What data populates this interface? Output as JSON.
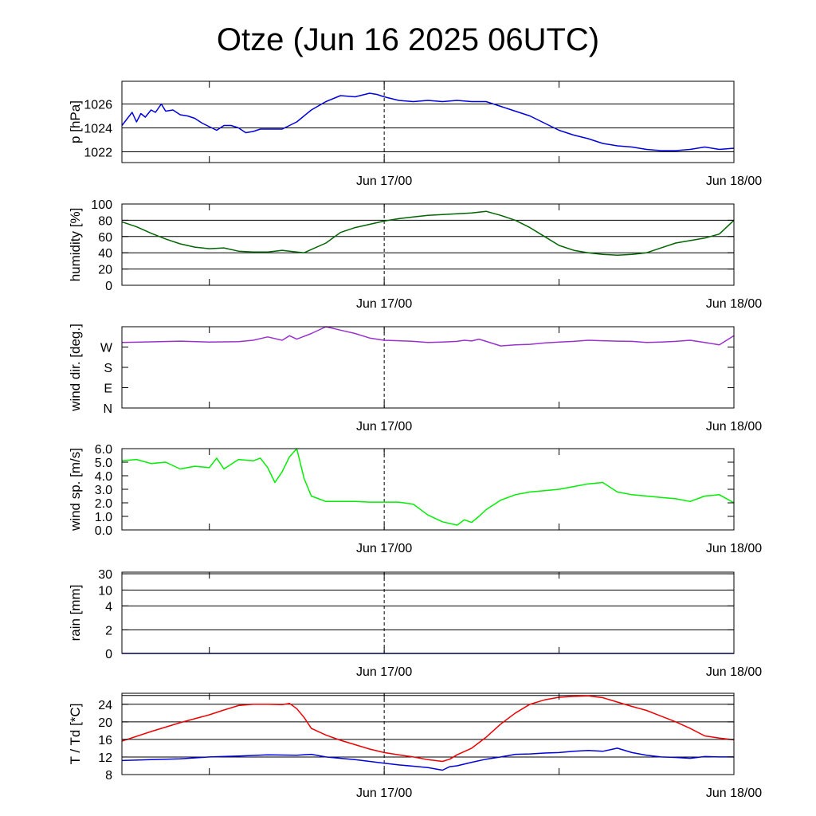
{
  "title": "Otze (Jun 16 2025 06UTC)",
  "x_axis": {
    "start": "Jun 16 06UTC",
    "end": "Jun 18 00UTC",
    "ticks": [
      "Jun 17/00",
      "Jun 18/00"
    ],
    "minor_ticks": [
      "Jun 16/12",
      "Jun 17/12"
    ],
    "marker": "Jun 17/00"
  },
  "chart_data": [
    {
      "type": "line",
      "ylabel": "p [hPa]",
      "ylim": [
        1021.1,
        1027.9
      ],
      "yticks": [
        1022,
        1024,
        1026
      ],
      "ytick_labels": [
        "1022",
        "1024",
        "1026"
      ],
      "grid_lines": [
        1022,
        1024,
        1026
      ],
      "series": [
        {
          "color": "#0000dd",
          "x": [
            0,
            0.7,
            1,
            1.3,
            1.6,
            2,
            2.3,
            2.7,
            3,
            3.5,
            4,
            4.5,
            5,
            5.5,
            6,
            6.5,
            7,
            7.5,
            8,
            8.5,
            9,
            9.5,
            10,
            11,
            12,
            13,
            14,
            15,
            16,
            17,
            17.5,
            18,
            19,
            20,
            21,
            22,
            23,
            24,
            25,
            26,
            27,
            28,
            29,
            30,
            31,
            32,
            33,
            34,
            35,
            36,
            37,
            38,
            39,
            40,
            41,
            42
          ],
          "y": [
            1024.2,
            1025.3,
            1024.5,
            1025.2,
            1024.9,
            1025.5,
            1025.3,
            1026.0,
            1025.4,
            1025.5,
            1025.1,
            1025.0,
            1024.8,
            1024.4,
            1024.1,
            1023.8,
            1024.2,
            1024.2,
            1024.0,
            1023.6,
            1023.7,
            1023.9,
            1023.9,
            1023.9,
            1024.5,
            1025.5,
            1026.2,
            1026.7,
            1026.6,
            1026.9,
            1026.8,
            1026.6,
            1026.3,
            1026.2,
            1026.3,
            1026.2,
            1026.3,
            1026.2,
            1026.2,
            1025.8,
            1025.4,
            1025.0,
            1024.4,
            1023.8,
            1023.4,
            1023.1,
            1022.7,
            1022.5,
            1022.4,
            1022.2,
            1022.1,
            1022.1,
            1022.2,
            1022.4,
            1022.2,
            1022.3
          ]
        }
      ]
    },
    {
      "type": "line",
      "ylabel": "humidity [%]",
      "ylim": [
        0,
        100
      ],
      "yticks": [
        0,
        20,
        40,
        60,
        80,
        100
      ],
      "ytick_labels": [
        "0",
        "20",
        "40",
        "60",
        "80",
        "100"
      ],
      "grid_lines": [
        20,
        40,
        60,
        80
      ],
      "series": [
        {
          "color": "#006400",
          "x": [
            0,
            1,
            2,
            3,
            4,
            5,
            6,
            7,
            8,
            9,
            10,
            10.5,
            11,
            11.5,
            12,
            12.5,
            13,
            14,
            15,
            16,
            17,
            18,
            19,
            20,
            21,
            22,
            23,
            24,
            25,
            26,
            27,
            28,
            29,
            30,
            31,
            32,
            33,
            34,
            35,
            36,
            37,
            38,
            39,
            40,
            41,
            42
          ],
          "y": [
            78,
            72,
            64,
            57,
            51,
            47,
            45,
            46,
            42,
            41,
            41,
            42,
            43,
            42,
            41,
            40,
            44,
            52,
            65,
            71,
            75,
            79,
            82,
            84,
            86,
            87,
            88,
            89,
            91,
            86,
            80,
            71,
            60,
            49,
            43,
            40,
            38,
            37,
            38,
            40,
            46,
            52,
            55,
            58,
            63,
            80
          ]
        }
      ]
    },
    {
      "type": "line",
      "ylabel": "wind dir. [deg.]",
      "ylim": [
        0,
        360
      ],
      "yticks": [
        0,
        90,
        180,
        270
      ],
      "ytick_labels": [
        "N",
        "E",
        "S",
        "W"
      ],
      "grid_lines": [],
      "series": [
        {
          "color": "#9932cc",
          "x": [
            0,
            2,
            4,
            6,
            8,
            9,
            10,
            11,
            11.5,
            12,
            13,
            14,
            15,
            16,
            17,
            18,
            19,
            20,
            21,
            22,
            23,
            23.5,
            24,
            24.5,
            25,
            26,
            27,
            28,
            29,
            30,
            31,
            32,
            33,
            34,
            35,
            36,
            37,
            38,
            39,
            40,
            41,
            42
          ],
          "y": [
            290,
            293,
            296,
            292,
            294,
            300,
            315,
            300,
            320,
            305,
            330,
            360,
            345,
            330,
            310,
            300,
            298,
            295,
            290,
            292,
            295,
            300,
            297,
            305,
            295,
            275,
            280,
            282,
            288,
            292,
            295,
            300,
            298,
            296,
            295,
            290,
            292,
            295,
            300,
            290,
            280,
            320
          ]
        }
      ]
    },
    {
      "type": "line",
      "ylabel": "wind sp. [m/s]",
      "ylim": [
        0,
        6
      ],
      "yticks": [
        0,
        1,
        2,
        3,
        4,
        5,
        6
      ],
      "ytick_labels": [
        "0.0",
        "1.0",
        "2.0",
        "3.0",
        "4.0",
        "5.0",
        "6.0"
      ],
      "grid_lines": [],
      "series": [
        {
          "color": "#00ee00",
          "x": [
            0,
            1,
            2,
            3,
            4,
            5,
            6,
            6.5,
            7,
            8,
            9,
            9.5,
            10,
            10.5,
            11,
            11.5,
            12,
            12.5,
            13,
            14,
            15,
            16,
            17,
            18,
            19,
            20,
            21,
            22,
            23,
            23.5,
            24,
            24.5,
            25,
            26,
            27,
            28,
            29,
            30,
            31,
            32,
            33,
            34,
            35,
            36,
            37,
            38,
            39,
            40,
            41,
            42
          ],
          "y": [
            5.1,
            5.2,
            4.9,
            5.0,
            4.5,
            4.7,
            4.6,
            5.3,
            4.5,
            5.2,
            5.1,
            5.3,
            4.6,
            3.5,
            4.3,
            5.4,
            6.0,
            3.8,
            2.5,
            2.1,
            2.1,
            2.1,
            2.05,
            2.05,
            2.05,
            1.9,
            1.1,
            0.6,
            0.35,
            0.75,
            0.55,
            1.0,
            1.5,
            2.2,
            2.6,
            2.8,
            2.9,
            3.0,
            3.2,
            3.4,
            3.5,
            2.8,
            2.6,
            2.5,
            2.4,
            2.3,
            2.1,
            2.5,
            2.6,
            2.0
          ]
        }
      ]
    },
    {
      "type": "line",
      "ylabel": "rain [mm]",
      "yticks": [
        "0",
        "2",
        "4",
        "10",
        "30"
      ],
      "ytick_labels": [
        "0",
        "2",
        "4",
        "10",
        "30"
      ],
      "grid_lines": [
        "2",
        "4",
        "10",
        "30"
      ],
      "series": [
        {
          "color": "#0000dd",
          "x": [
            0,
            42
          ],
          "y": [
            0,
            0
          ]
        }
      ]
    },
    {
      "type": "line",
      "ylabel": "T / Td [*C]",
      "ylim": [
        8,
        26.5
      ],
      "yticks": [
        8,
        12,
        16,
        20,
        24
      ],
      "ytick_labels": [
        "8",
        "12",
        "16",
        "20",
        "24"
      ],
      "grid_lines": [
        12,
        16,
        20,
        24,
        26
      ],
      "series": [
        {
          "color": "#ee0000",
          "x": [
            0,
            2,
            4,
            6,
            7,
            8,
            9,
            10,
            11,
            11.5,
            12,
            12.5,
            13,
            14,
            15,
            16,
            17,
            18,
            19,
            20,
            21,
            22,
            22.5,
            23,
            24,
            25,
            26,
            27,
            28,
            29,
            30,
            31,
            32,
            33,
            34,
            35,
            36,
            37,
            38,
            39,
            40,
            41,
            42
          ],
          "y": [
            15.6,
            17.8,
            19.8,
            21.6,
            22.7,
            23.7,
            24.0,
            24.0,
            23.9,
            24.2,
            23.0,
            21.0,
            18.5,
            17.0,
            15.8,
            14.8,
            13.8,
            13.0,
            12.5,
            12.0,
            11.4,
            11.0,
            11.5,
            12.5,
            14.0,
            16.5,
            19.5,
            22.0,
            24.0,
            25.0,
            25.6,
            25.8,
            25.9,
            25.5,
            24.5,
            23.5,
            22.6,
            21.3,
            20.0,
            18.5,
            16.8,
            16.3,
            15.9
          ]
        },
        {
          "color": "#0000dd",
          "x": [
            0,
            2,
            4,
            6,
            8,
            10,
            12,
            13,
            14,
            15,
            16,
            17,
            18,
            19,
            20,
            21,
            22,
            22.5,
            23,
            24,
            25,
            26,
            27,
            28,
            29,
            30,
            31,
            32,
            33,
            34,
            35,
            36,
            37,
            38,
            39,
            40,
            41,
            42
          ],
          "y": [
            11.2,
            11.4,
            11.6,
            12.0,
            12.2,
            12.5,
            12.4,
            12.6,
            12.0,
            11.7,
            11.4,
            11.0,
            10.6,
            10.2,
            9.9,
            9.6,
            9.0,
            9.8,
            10.0,
            10.8,
            11.5,
            12.0,
            12.6,
            12.7,
            12.9,
            13.0,
            13.3,
            13.5,
            13.3,
            14.0,
            13.0,
            12.4,
            12.0,
            11.9,
            11.7,
            12.1,
            12.0,
            12.0
          ]
        }
      ]
    }
  ]
}
